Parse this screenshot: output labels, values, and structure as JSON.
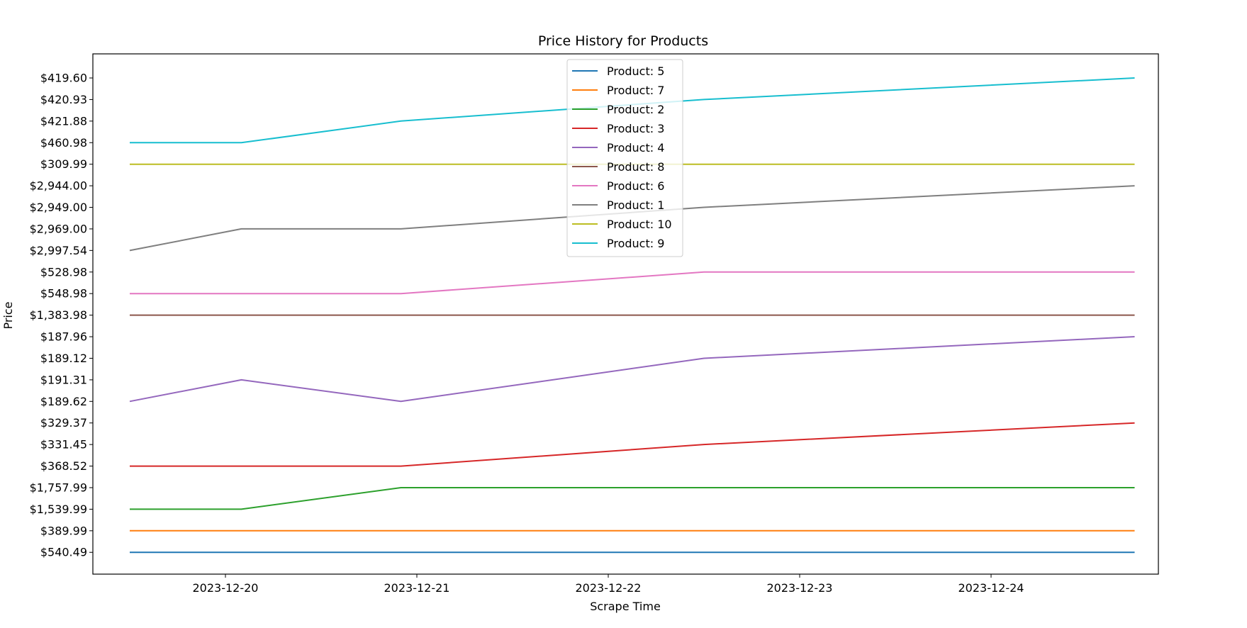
{
  "chart_data": {
    "type": "line",
    "title": "Price History for Products",
    "xlabel": "Scrape Time",
    "ylabel": "Price",
    "x": [
      "2023-12-19 12:00",
      "2023-12-20 02:00",
      "2023-12-20 22:00",
      "2023-12-22 12:00",
      "2023-12-24 18:00"
    ],
    "x_ticks": [
      "2023-12-20",
      "2023-12-21",
      "2023-12-22",
      "2023-12-23",
      "2023-12-24"
    ],
    "y_categories": [
      "$540.49",
      "$389.99",
      "$1,539.99",
      "$1,757.99",
      "$368.52",
      "$331.45",
      "$329.37",
      "$189.62",
      "$191.31",
      "$189.12",
      "$187.96",
      "$1,383.98",
      "$548.98",
      "$528.98",
      "$2,997.54",
      "$2,969.00",
      "$2,949.00",
      "$2,944.00",
      "$309.99",
      "$460.98",
      "$421.88",
      "$420.93",
      "$419.60"
    ],
    "series": [
      {
        "name": "Product: 5",
        "color": "#1f77b4",
        "values": [
          "$540.49",
          "$540.49",
          "$540.49",
          "$540.49",
          "$540.49"
        ]
      },
      {
        "name": "Product: 7",
        "color": "#ff7f0e",
        "values": [
          "$389.99",
          "$389.99",
          "$389.99",
          "$389.99",
          "$389.99"
        ]
      },
      {
        "name": "Product: 2",
        "color": "#2ca02c",
        "values": [
          "$1,539.99",
          "$1,539.99",
          "$1,757.99",
          "$1,757.99",
          "$1,757.99"
        ]
      },
      {
        "name": "Product: 3",
        "color": "#d62728",
        "values": [
          "$368.52",
          "$368.52",
          "$368.52",
          "$331.45",
          "$329.37"
        ]
      },
      {
        "name": "Product: 4",
        "color": "#9467bd",
        "values": [
          "$189.62",
          "$191.31",
          "$189.62",
          "$189.12",
          "$187.96"
        ]
      },
      {
        "name": "Product: 8",
        "color": "#8c564b",
        "values": [
          "$1,383.98",
          "$1,383.98",
          "$1,383.98",
          "$1,383.98",
          "$1,383.98"
        ]
      },
      {
        "name": "Product: 6",
        "color": "#e377c2",
        "values": [
          "$548.98",
          "$548.98",
          "$548.98",
          "$528.98",
          "$528.98"
        ]
      },
      {
        "name": "Product: 1",
        "color": "#7f7f7f",
        "values": [
          "$2,997.54",
          "$2,969.00",
          "$2,969.00",
          "$2,949.00",
          "$2,944.00"
        ]
      },
      {
        "name": "Product: 10",
        "color": "#bcbd22",
        "values": [
          "$309.99",
          "$309.99",
          "$309.99",
          "$309.99",
          "$309.99"
        ]
      },
      {
        "name": "Product: 9",
        "color": "#17becf",
        "values": [
          "$460.98",
          "$460.98",
          "$421.88",
          "$420.93",
          "$419.60"
        ]
      }
    ],
    "grid": false,
    "legend_position": "top-center"
  }
}
